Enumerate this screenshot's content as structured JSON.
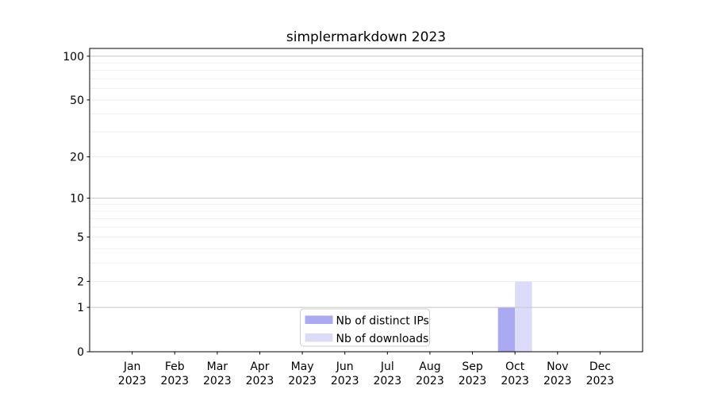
{
  "chart_data": {
    "type": "bar",
    "title": "simplermarkdown 2023",
    "categories": [
      "Jan",
      "Feb",
      "Mar",
      "Apr",
      "May",
      "Jun",
      "Jul",
      "Aug",
      "Sep",
      "Oct",
      "Nov",
      "Dec"
    ],
    "category_year": "2023",
    "series": [
      {
        "name": "Nb of distinct IPs",
        "color": "#aaaaf2",
        "values": [
          0,
          0,
          0,
          0,
          0,
          0,
          0,
          0,
          0,
          1,
          0,
          0
        ]
      },
      {
        "name": "Nb of downloads",
        "color": "#dcdcf8",
        "values": [
          0,
          0,
          0,
          0,
          0,
          0,
          0,
          0,
          0,
          2,
          0,
          0
        ]
      }
    ],
    "xlabel": "",
    "ylabel": "",
    "yscale": "log1p",
    "ylim": [
      0,
      113
    ],
    "yticks": [
      0,
      1,
      2,
      5,
      10,
      20,
      50,
      100
    ],
    "grid": {
      "major_lines": [
        1,
        10,
        100
      ],
      "minor_lines": [
        2,
        3,
        4,
        5,
        6,
        7,
        8,
        9,
        20,
        30,
        40,
        50,
        60,
        70,
        80,
        90
      ],
      "major_color": "#c6c6c6",
      "minor_color": "#ededed"
    },
    "legend": {
      "location": "lower center, inside plot",
      "entries": [
        "Nb of distinct IPs",
        "Nb of downloads"
      ]
    },
    "bar_width_fraction": 0.4,
    "colors": {
      "axis": "#000000",
      "text": "#000000",
      "background": "#ffffff",
      "legend_border": "#cccccc"
    }
  }
}
